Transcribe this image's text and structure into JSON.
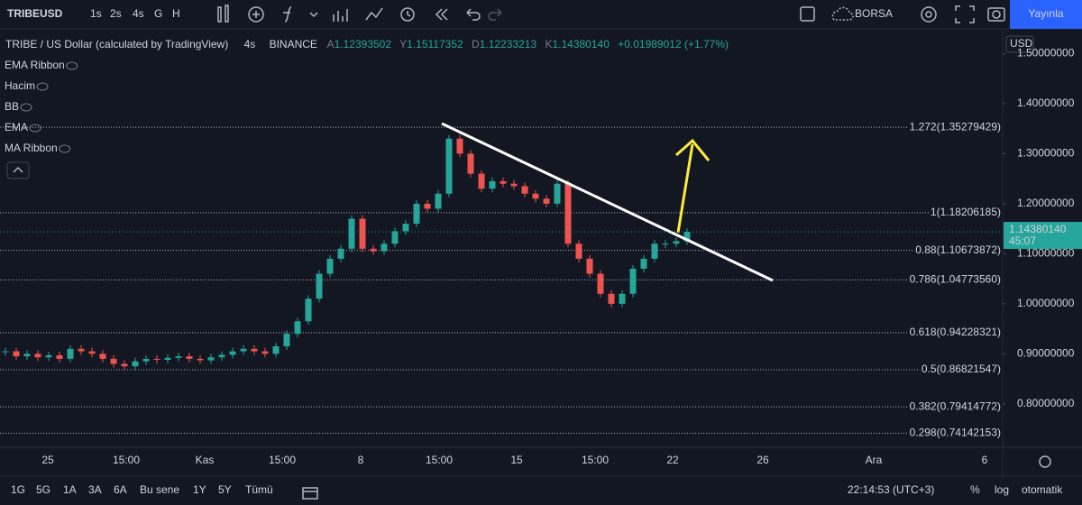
{
  "toolbar": {
    "symbol": "TRIBEUSD",
    "intervals": [
      "1s",
      "2s",
      "4s",
      "G",
      "H"
    ],
    "active_interval": 2,
    "exchange": "BORSA",
    "publish": "Yayınla"
  },
  "legend": {
    "title": "TRIBE / US Dollar (calculated by TradingView)",
    "interval": "4s",
    "exchange": "BINANCE",
    "ohlc": [
      {
        "key": "A",
        "value": "1.12393502"
      },
      {
        "key": "Y",
        "value": "1.15117352"
      },
      {
        "key": "D",
        "value": "1.12233213"
      },
      {
        "key": "K",
        "value": "1.14380140"
      }
    ],
    "change": "+0.01989012 (+1.77%)"
  },
  "indicators": [
    "EMA Ribbon",
    "Hacim",
    "BB",
    "EMA",
    "MA Ribbon"
  ],
  "chart_data": {
    "type": "candlestick",
    "values": [
      0.905,
      0.895,
      0.9,
      0.893,
      0.897,
      0.89,
      0.91,
      0.905,
      0.9,
      0.89,
      0.88,
      0.875,
      0.885,
      0.89,
      0.888,
      0.892,
      0.895,
      0.89,
      0.887,
      0.893,
      0.898,
      0.905,
      0.91,
      0.905,
      0.9,
      0.915,
      0.94,
      0.965,
      1.01,
      1.06,
      1.09,
      1.11,
      1.17,
      1.11,
      1.105,
      1.12,
      1.145,
      1.16,
      1.2,
      1.19,
      1.22,
      1.33,
      1.3,
      1.26,
      1.23,
      1.245,
      1.24,
      1.235,
      1.22,
      1.21,
      1.2,
      1.24,
      1.12,
      1.09,
      1.06,
      1.02,
      1.0,
      1.02,
      1.07,
      1.09,
      1.12,
      1.12,
      1.125,
      1.1438
    ],
    "up_color": "#26a69a",
    "down_color": "#ef5350",
    "ylim": [
      0.715,
      1.544
    ],
    "yticks": [
      {
        "value": 0.8,
        "label": "0.80000000"
      },
      {
        "value": 0.9,
        "label": "0.90000000"
      },
      {
        "value": 1.0,
        "label": "1.00000000"
      },
      {
        "value": 1.1,
        "label": "1.10000000"
      },
      {
        "value": 1.2,
        "label": "1.20000000"
      },
      {
        "value": 1.3,
        "label": "1.30000000"
      },
      {
        "value": 1.4,
        "label": "1.40000000"
      },
      {
        "value": 1.5,
        "label": "1.50000000"
      }
    ],
    "fib_levels": [
      {
        "value": 1.35279429,
        "label": "1.272(1.35279429)"
      },
      {
        "value": 1.18206185,
        "label": "1(1.18206185)"
      },
      {
        "value": 1.10673872,
        "label": "0.88(1.10673872)"
      },
      {
        "value": 1.0477356,
        "label": "0.786(1.04773560)"
      },
      {
        "value": 0.94228321,
        "label": "0.618(0.94228321)"
      },
      {
        "value": 0.86821547,
        "label": "0.5(0.86821547)"
      },
      {
        "value": 0.79414772,
        "label": "0.382(0.79414772)"
      },
      {
        "value": 0.74142153,
        "label": "0.298(0.74142153)"
      }
    ],
    "last_price": {
      "value": 1.1438014,
      "label": "1.14380140"
    },
    "countdown": "45:07",
    "currency": "USD",
    "x_labels": [
      "25",
      "15:00",
      "Kas",
      "15:00",
      "8",
      "15:00",
      "15",
      "15:00",
      "22",
      "26",
      "Ara",
      "6"
    ]
  },
  "bottom_bar": {
    "ranges": [
      "1G",
      "5G",
      "1A",
      "3A",
      "6A",
      "Bu sene",
      "1Y",
      "5Y",
      "Tümü"
    ],
    "clock": "22:14:53 (UTC+3)",
    "percent": "%",
    "log": "log",
    "auto": "otomatik"
  }
}
